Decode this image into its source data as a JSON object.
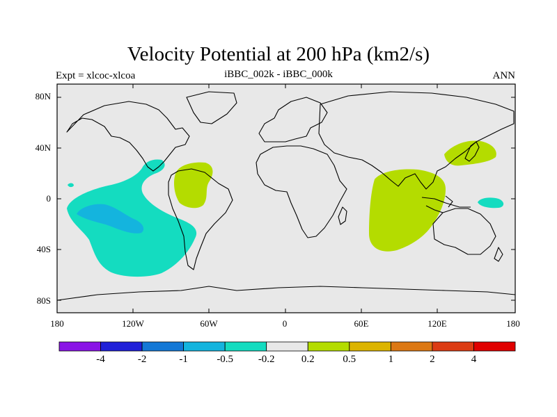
{
  "title": "Velocity Potential at 200 hPa (km2/s)",
  "left_subtitle": "Expt = xlcoc-xlcoa",
  "center_subtitle": "iBBC_002k - iBBC_000k",
  "right_subtitle": "ANN",
  "lat_labels": [
    "80N",
    "40N",
    "0",
    "40S",
    "80S"
  ],
  "lon_labels": [
    "180",
    "120W",
    "60W",
    "0",
    "60E",
    "120E",
    "180"
  ],
  "colorbar": {
    "colors": [
      "#8a14e6",
      "#2020d8",
      "#1478d6",
      "#14b4de",
      "#14dcc0",
      "#e8e8e8",
      "#b4dc00",
      "#dcb400",
      "#dc7814",
      "#dc3c14",
      "#e00000"
    ],
    "labels": [
      "-4",
      "-2",
      "-1",
      "-0.5",
      "-0.2",
      "0.2",
      "0.5",
      "1",
      "2",
      "4"
    ]
  },
  "colors": {
    "background": "#e8e8e8",
    "negative": "#14dcc0",
    "negative_strong": "#14b4de",
    "positive": "#b4dc00"
  }
}
